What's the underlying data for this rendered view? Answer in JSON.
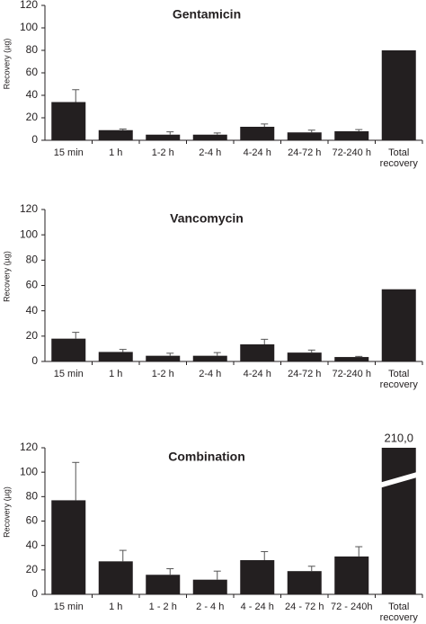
{
  "chart_data": [
    {
      "type": "bar",
      "title": "Gentamicin",
      "y_label": "Recovery (µg)",
      "categories": [
        "15 min",
        "1 h",
        "1-2 h",
        "2-4 h",
        "4-24 h",
        "24-72 h",
        "72-240 h",
        "Total recovery"
      ],
      "values": [
        34,
        9,
        5,
        5,
        12,
        7,
        8,
        80
      ],
      "errors": [
        11,
        1,
        2.5,
        1.5,
        2.5,
        2,
        1.5,
        null
      ],
      "color": "#231f20",
      "ylim": [
        0,
        120
      ],
      "yticks": [
        0,
        20,
        40,
        60,
        80,
        100,
        120
      ]
    },
    {
      "type": "bar",
      "title": "Vancomycin",
      "y_label": "Recovery (µg)",
      "categories": [
        "15 min",
        "1 h",
        "1-2 h",
        "2-4 h",
        "4-24 h",
        "24-72 h",
        "72-240 h",
        "Total recovery"
      ],
      "values": [
        18,
        7.5,
        4.5,
        4.5,
        13.5,
        7,
        3.5,
        57
      ],
      "errors": [
        5,
        2,
        2,
        2.5,
        4,
        2,
        0.5,
        null
      ],
      "color": "#231f20",
      "ylim": [
        0,
        120
      ],
      "yticks": [
        0,
        20,
        40,
        60,
        80,
        100,
        120
      ]
    },
    {
      "type": "bar",
      "title": "Combination",
      "y_label": "Recovery (µg)",
      "categories": [
        "15 min",
        "1 h",
        "1 - 2 h",
        "2 - 4 h",
        "4 - 24 h",
        "24 - 72 h",
        "72 - 240h",
        "Total recovery"
      ],
      "values": [
        77,
        27,
        16,
        12,
        28,
        19,
        31,
        210
      ],
      "value_labels": [
        null,
        null,
        null,
        null,
        null,
        null,
        null,
        "210,0"
      ],
      "errors": [
        31,
        9,
        5,
        7,
        7,
        4,
        8,
        null
      ],
      "color": "#231f20",
      "ylim": [
        0,
        120
      ],
      "yticks": [
        0,
        20,
        40,
        60,
        80,
        100,
        120
      ]
    }
  ]
}
